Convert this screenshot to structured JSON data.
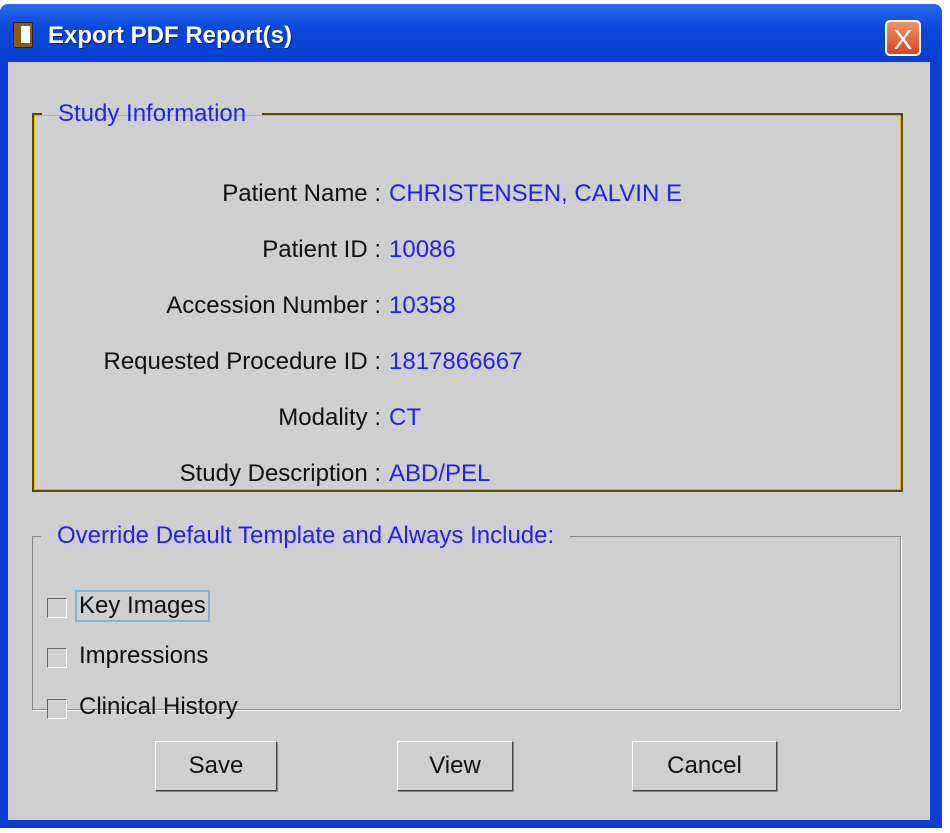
{
  "window": {
    "title": "Export PDF Report(s)",
    "close_label": "X"
  },
  "study_info": {
    "legend": "Study Information",
    "rows": [
      {
        "label": "Patient Name :",
        "value": "CHRISTENSEN, CALVIN E"
      },
      {
        "label": "Patient ID :",
        "value": "10086"
      },
      {
        "label": "Accession Number :",
        "value": "10358"
      },
      {
        "label": "Requested Procedure ID :",
        "value": "1817866667"
      },
      {
        "label": "Modality :",
        "value": "CT"
      },
      {
        "label": "Study Description :",
        "value": "ABD/PEL"
      }
    ]
  },
  "override": {
    "legend": "Override Default Template and Always Include:",
    "options": [
      {
        "label": "Key Images",
        "checked": false
      },
      {
        "label": "Impressions",
        "checked": false
      },
      {
        "label": "Clinical History",
        "checked": false
      }
    ]
  },
  "buttons": {
    "save": "Save",
    "view": "View",
    "cancel": "Cancel"
  }
}
